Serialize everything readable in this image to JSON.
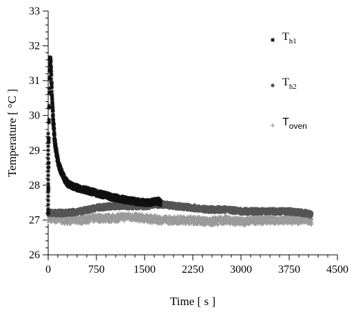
{
  "chart_data": {
    "type": "scatter",
    "xlabel": "Time [ s ]",
    "ylabel": "Temperature [ °C ]",
    "xlim": [
      0,
      4500
    ],
    "ylim": [
      26,
      33
    ],
    "xticks": [
      "0",
      "750",
      "1500",
      "2250",
      "3000",
      "3750",
      "4500"
    ],
    "yticks": [
      "26",
      "27",
      "28",
      "29",
      "30",
      "31",
      "32",
      "33"
    ],
    "legend_position": "top-right",
    "grid": false,
    "series": [
      {
        "key": "th1",
        "name_main": "T",
        "name_sub": "h1",
        "marker": "asterisk",
        "color": "#111111",
        "x": [
          0,
          10,
          20,
          30,
          40,
          50,
          60,
          80,
          100,
          130,
          160,
          200,
          250,
          300,
          400,
          500,
          600,
          700,
          800,
          900,
          1000,
          1100,
          1200,
          1300,
          1400,
          1500,
          1600,
          1700,
          1750
        ],
        "y": [
          27.2,
          29.5,
          31.0,
          31.7,
          31.5,
          31.0,
          30.5,
          29.8,
          29.3,
          28.9,
          28.6,
          28.4,
          28.2,
          28.05,
          27.95,
          27.9,
          27.85,
          27.8,
          27.75,
          27.7,
          27.65,
          27.62,
          27.58,
          27.55,
          27.52,
          27.5,
          27.5,
          27.55,
          27.5
        ]
      },
      {
        "key": "th2",
        "name_main": "T",
        "name_sub": "h2",
        "marker": "circle",
        "color": "#555555",
        "x": [
          0,
          250,
          500,
          750,
          1000,
          1250,
          1500,
          1750,
          2000,
          2250,
          2500,
          2750,
          3000,
          3250,
          3500,
          3750,
          4000,
          4100
        ],
        "y": [
          27.2,
          27.2,
          27.25,
          27.35,
          27.4,
          27.4,
          27.4,
          27.45,
          27.4,
          27.35,
          27.3,
          27.3,
          27.25,
          27.25,
          27.25,
          27.25,
          27.2,
          27.15
        ]
      },
      {
        "key": "toven",
        "name_main": "T",
        "name_sub": "oven",
        "marker": "plus",
        "color": "#9a9a9a",
        "x": [
          0,
          250,
          500,
          750,
          1000,
          1250,
          1500,
          1750,
          2000,
          2250,
          2500,
          2750,
          3000,
          3250,
          3500,
          3750,
          4000,
          4100
        ],
        "y": [
          27.05,
          27.0,
          27.0,
          27.05,
          27.05,
          27.1,
          27.05,
          27.0,
          27.0,
          27.0,
          26.95,
          27.0,
          26.95,
          27.0,
          27.0,
          27.0,
          27.0,
          26.95
        ]
      }
    ]
  }
}
